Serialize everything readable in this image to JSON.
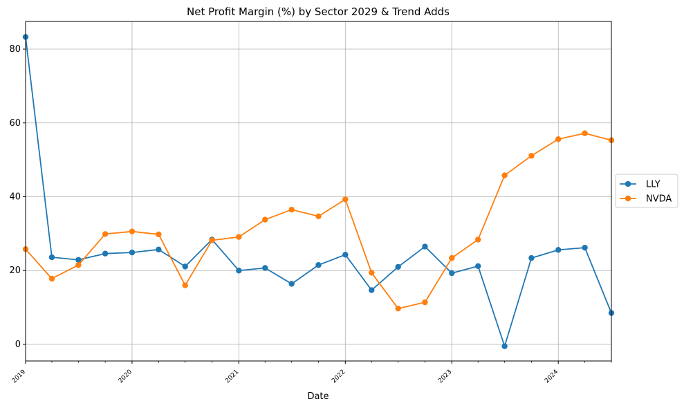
{
  "chart_data": {
    "type": "line",
    "title": "Net Profit Margin (%) by Sector 2029 & Trend Adds",
    "xlabel": "Date",
    "ylabel": "",
    "x": [
      "2019-01-01",
      "2019-04-01",
      "2019-07-01",
      "2019-10-01",
      "2020-01-01",
      "2020-04-01",
      "2020-07-01",
      "2020-10-01",
      "2021-01-01",
      "2021-04-01",
      "2021-07-01",
      "2021-10-01",
      "2022-01-01",
      "2022-04-01",
      "2022-07-01",
      "2022-10-01",
      "2023-01-01",
      "2023-04-01",
      "2023-07-01",
      "2023-10-01",
      "2024-01-01",
      "2024-04-01",
      "2024-07-01"
    ],
    "xlim": [
      "2019-01-01",
      "2024-07-01"
    ],
    "ylim": [
      -4.5,
      87.5
    ],
    "x_tick_labels": [
      "2019",
      "2020",
      "2021",
      "2022",
      "2023",
      "2024"
    ],
    "y_tick_labels": [
      "0",
      "20",
      "40",
      "60",
      "80"
    ],
    "grid": true,
    "legend_position": "outside-right",
    "series": [
      {
        "name": "LLY",
        "color": "#1f77b4",
        "values": [
          83.3,
          23.6,
          22.9,
          24.6,
          24.9,
          25.7,
          21.1,
          28.4,
          20.0,
          20.7,
          16.4,
          21.5,
          24.3,
          14.7,
          21.0,
          26.5,
          19.3,
          21.2,
          -0.5,
          23.4,
          25.6,
          26.2,
          8.5
        ]
      },
      {
        "name": "NVDA",
        "color": "#ff7f0e",
        "values": [
          25.8,
          17.8,
          21.5,
          29.9,
          30.6,
          29.8,
          16.0,
          28.2,
          29.1,
          33.8,
          36.5,
          34.7,
          39.3,
          19.4,
          9.7,
          11.4,
          23.4,
          28.4,
          45.8,
          51.1,
          55.6,
          57.2,
          55.3
        ]
      }
    ]
  }
}
